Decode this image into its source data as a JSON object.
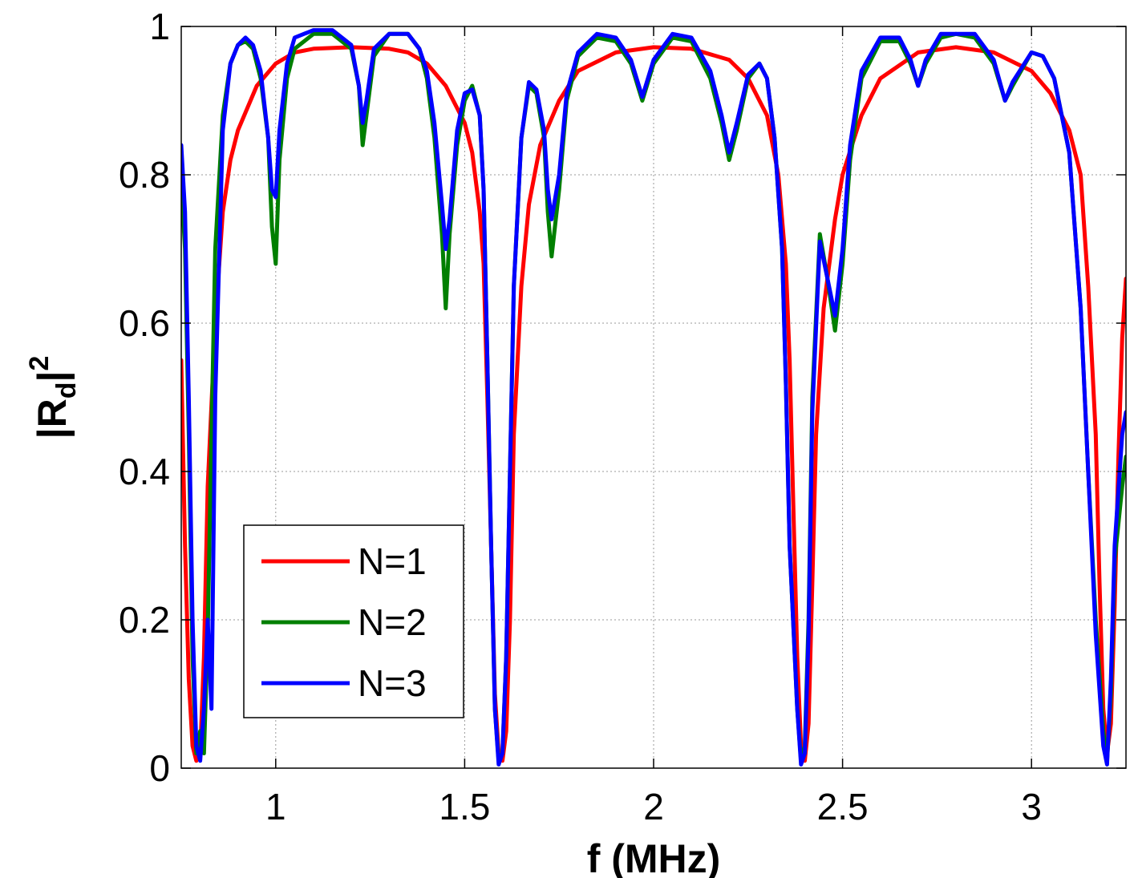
{
  "chart_data": {
    "type": "line",
    "title": "",
    "xlabel": "f (MHz)",
    "ylabel_main": "|R",
    "ylabel_sub": "d",
    "ylabel_tail": "|",
    "ylabel_sup": "2",
    "xlim": [
      0.75,
      3.25
    ],
    "ylim": [
      0,
      1
    ],
    "grid": true,
    "legend_position": "lower-left",
    "x_ticks": [
      {
        "value": 1,
        "label": "1"
      },
      {
        "value": 1.5,
        "label": "1.5"
      },
      {
        "value": 2,
        "label": "2"
      },
      {
        "value": 2.5,
        "label": "2.5"
      },
      {
        "value": 3,
        "label": "3"
      }
    ],
    "y_ticks": [
      {
        "value": 0,
        "label": "0"
      },
      {
        "value": 0.2,
        "label": "0.2"
      },
      {
        "value": 0.4,
        "label": "0.4"
      },
      {
        "value": 0.6,
        "label": "0.6"
      },
      {
        "value": 0.8,
        "label": "0.8"
      },
      {
        "value": 1,
        "label": "1"
      }
    ],
    "series": [
      {
        "name": "N=1",
        "color": "#ff0000",
        "points": [
          [
            0.75,
            0.55
          ],
          [
            0.76,
            0.3
          ],
          [
            0.77,
            0.12
          ],
          [
            0.78,
            0.03
          ],
          [
            0.79,
            0.01
          ],
          [
            0.8,
            0.02
          ],
          [
            0.81,
            0.15
          ],
          [
            0.82,
            0.38
          ],
          [
            0.84,
            0.6
          ],
          [
            0.86,
            0.75
          ],
          [
            0.88,
            0.82
          ],
          [
            0.9,
            0.86
          ],
          [
            0.95,
            0.92
          ],
          [
            1.0,
            0.95
          ],
          [
            1.05,
            0.965
          ],
          [
            1.1,
            0.97
          ],
          [
            1.2,
            0.972
          ],
          [
            1.3,
            0.97
          ],
          [
            1.35,
            0.965
          ],
          [
            1.4,
            0.95
          ],
          [
            1.45,
            0.92
          ],
          [
            1.5,
            0.87
          ],
          [
            1.52,
            0.83
          ],
          [
            1.54,
            0.75
          ],
          [
            1.55,
            0.68
          ],
          [
            1.56,
            0.5
          ],
          [
            1.57,
            0.3
          ],
          [
            1.58,
            0.1
          ],
          [
            1.59,
            0.02
          ],
          [
            1.6,
            0.01
          ],
          [
            1.61,
            0.05
          ],
          [
            1.62,
            0.2
          ],
          [
            1.63,
            0.45
          ],
          [
            1.65,
            0.65
          ],
          [
            1.67,
            0.76
          ],
          [
            1.7,
            0.84
          ],
          [
            1.75,
            0.9
          ],
          [
            1.8,
            0.94
          ],
          [
            1.9,
            0.965
          ],
          [
            2.0,
            0.972
          ],
          [
            2.1,
            0.97
          ],
          [
            2.2,
            0.955
          ],
          [
            2.25,
            0.93
          ],
          [
            2.3,
            0.88
          ],
          [
            2.33,
            0.8
          ],
          [
            2.35,
            0.68
          ],
          [
            2.36,
            0.55
          ],
          [
            2.37,
            0.35
          ],
          [
            2.38,
            0.15
          ],
          [
            2.39,
            0.03
          ],
          [
            2.4,
            0.01
          ],
          [
            2.41,
            0.06
          ],
          [
            2.42,
            0.25
          ],
          [
            2.43,
            0.45
          ],
          [
            2.45,
            0.62
          ],
          [
            2.48,
            0.74
          ],
          [
            2.5,
            0.8
          ],
          [
            2.55,
            0.88
          ],
          [
            2.6,
            0.93
          ],
          [
            2.7,
            0.965
          ],
          [
            2.8,
            0.972
          ],
          [
            2.9,
            0.965
          ],
          [
            3.0,
            0.94
          ],
          [
            3.05,
            0.91
          ],
          [
            3.1,
            0.86
          ],
          [
            3.13,
            0.8
          ],
          [
            3.15,
            0.65
          ],
          [
            3.17,
            0.45
          ],
          [
            3.18,
            0.25
          ],
          [
            3.19,
            0.08
          ],
          [
            3.2,
            0.02
          ],
          [
            3.21,
            0.06
          ],
          [
            3.22,
            0.22
          ],
          [
            3.23,
            0.42
          ],
          [
            3.24,
            0.58
          ],
          [
            3.25,
            0.66
          ]
        ]
      },
      {
        "name": "N=2",
        "color": "#007f00",
        "points": [
          [
            0.75,
            0.79
          ],
          [
            0.76,
            0.7
          ],
          [
            0.77,
            0.45
          ],
          [
            0.78,
            0.15
          ],
          [
            0.79,
            0.02
          ],
          [
            0.8,
            0.05
          ],
          [
            0.81,
            0.02
          ],
          [
            0.82,
            0.18
          ],
          [
            0.83,
            0.45
          ],
          [
            0.84,
            0.7
          ],
          [
            0.86,
            0.88
          ],
          [
            0.88,
            0.95
          ],
          [
            0.9,
            0.975
          ],
          [
            0.92,
            0.98
          ],
          [
            0.94,
            0.97
          ],
          [
            0.96,
            0.93
          ],
          [
            0.98,
            0.85
          ],
          [
            0.99,
            0.73
          ],
          [
            1.0,
            0.68
          ],
          [
            1.01,
            0.82
          ],
          [
            1.03,
            0.93
          ],
          [
            1.05,
            0.97
          ],
          [
            1.1,
            0.99
          ],
          [
            1.15,
            0.99
          ],
          [
            1.2,
            0.97
          ],
          [
            1.22,
            0.92
          ],
          [
            1.23,
            0.84
          ],
          [
            1.24,
            0.88
          ],
          [
            1.26,
            0.96
          ],
          [
            1.3,
            0.99
          ],
          [
            1.35,
            0.99
          ],
          [
            1.38,
            0.97
          ],
          [
            1.4,
            0.93
          ],
          [
            1.42,
            0.85
          ],
          [
            1.44,
            0.72
          ],
          [
            1.45,
            0.62
          ],
          [
            1.46,
            0.72
          ],
          [
            1.48,
            0.84
          ],
          [
            1.5,
            0.9
          ],
          [
            1.52,
            0.92
          ],
          [
            1.54,
            0.88
          ],
          [
            1.55,
            0.78
          ],
          [
            1.56,
            0.55
          ],
          [
            1.57,
            0.3
          ],
          [
            1.58,
            0.08
          ],
          [
            1.59,
            0.01
          ],
          [
            1.6,
            0.02
          ],
          [
            1.61,
            0.15
          ],
          [
            1.62,
            0.4
          ],
          [
            1.63,
            0.65
          ],
          [
            1.65,
            0.85
          ],
          [
            1.67,
            0.92
          ],
          [
            1.69,
            0.91
          ],
          [
            1.71,
            0.85
          ],
          [
            1.72,
            0.75
          ],
          [
            1.73,
            0.69
          ],
          [
            1.75,
            0.78
          ],
          [
            1.77,
            0.9
          ],
          [
            1.8,
            0.96
          ],
          [
            1.85,
            0.985
          ],
          [
            1.9,
            0.98
          ],
          [
            1.94,
            0.95
          ],
          [
            1.97,
            0.9
          ],
          [
            2.0,
            0.95
          ],
          [
            2.05,
            0.985
          ],
          [
            2.1,
            0.98
          ],
          [
            2.15,
            0.93
          ],
          [
            2.18,
            0.87
          ],
          [
            2.2,
            0.82
          ],
          [
            2.22,
            0.86
          ],
          [
            2.25,
            0.93
          ],
          [
            2.28,
            0.95
          ],
          [
            2.3,
            0.93
          ],
          [
            2.32,
            0.85
          ],
          [
            2.34,
            0.7
          ],
          [
            2.35,
            0.52
          ],
          [
            2.36,
            0.3
          ],
          [
            2.38,
            0.08
          ],
          [
            2.39,
            0.01
          ],
          [
            2.4,
            0.03
          ],
          [
            2.41,
            0.2
          ],
          [
            2.42,
            0.5
          ],
          [
            2.44,
            0.72
          ],
          [
            2.46,
            0.66
          ],
          [
            2.48,
            0.59
          ],
          [
            2.5,
            0.68
          ],
          [
            2.52,
            0.82
          ],
          [
            2.55,
            0.93
          ],
          [
            2.6,
            0.98
          ],
          [
            2.65,
            0.98
          ],
          [
            2.68,
            0.95
          ],
          [
            2.7,
            0.92
          ],
          [
            2.72,
            0.95
          ],
          [
            2.76,
            0.985
          ],
          [
            2.8,
            0.99
          ],
          [
            2.85,
            0.985
          ],
          [
            2.9,
            0.95
          ],
          [
            2.93,
            0.9
          ],
          [
            2.95,
            0.92
          ],
          [
            3.0,
            0.965
          ],
          [
            3.03,
            0.96
          ],
          [
            3.06,
            0.93
          ],
          [
            3.1,
            0.83
          ],
          [
            3.13,
            0.62
          ],
          [
            3.15,
            0.4
          ],
          [
            3.17,
            0.2
          ],
          [
            3.19,
            0.05
          ],
          [
            3.2,
            0.01
          ],
          [
            3.21,
            0.1
          ],
          [
            3.22,
            0.28
          ],
          [
            3.24,
            0.38
          ],
          [
            3.25,
            0.42
          ]
        ]
      },
      {
        "name": "N=3",
        "color": "#0000ff",
        "points": [
          [
            0.75,
            0.84
          ],
          [
            0.76,
            0.75
          ],
          [
            0.77,
            0.5
          ],
          [
            0.78,
            0.2
          ],
          [
            0.79,
            0.03
          ],
          [
            0.8,
            0.01
          ],
          [
            0.81,
            0.08
          ],
          [
            0.82,
            0.2
          ],
          [
            0.83,
            0.08
          ],
          [
            0.84,
            0.5
          ],
          [
            0.86,
            0.86
          ],
          [
            0.88,
            0.95
          ],
          [
            0.9,
            0.975
          ],
          [
            0.92,
            0.985
          ],
          [
            0.94,
            0.975
          ],
          [
            0.96,
            0.94
          ],
          [
            0.98,
            0.85
          ],
          [
            0.99,
            0.78
          ],
          [
            1.0,
            0.77
          ],
          [
            1.01,
            0.86
          ],
          [
            1.03,
            0.95
          ],
          [
            1.05,
            0.985
          ],
          [
            1.1,
            0.995
          ],
          [
            1.15,
            0.995
          ],
          [
            1.2,
            0.975
          ],
          [
            1.22,
            0.92
          ],
          [
            1.23,
            0.87
          ],
          [
            1.24,
            0.9
          ],
          [
            1.26,
            0.97
          ],
          [
            1.3,
            0.99
          ],
          [
            1.35,
            0.99
          ],
          [
            1.38,
            0.97
          ],
          [
            1.4,
            0.94
          ],
          [
            1.42,
            0.87
          ],
          [
            1.44,
            0.76
          ],
          [
            1.45,
            0.7
          ],
          [
            1.46,
            0.74
          ],
          [
            1.48,
            0.86
          ],
          [
            1.5,
            0.91
          ],
          [
            1.52,
            0.915
          ],
          [
            1.54,
            0.88
          ],
          [
            1.55,
            0.78
          ],
          [
            1.56,
            0.55
          ],
          [
            1.57,
            0.3
          ],
          [
            1.58,
            0.08
          ],
          [
            1.59,
            0.005
          ],
          [
            1.6,
            0.02
          ],
          [
            1.61,
            0.15
          ],
          [
            1.62,
            0.4
          ],
          [
            1.63,
            0.65
          ],
          [
            1.65,
            0.85
          ],
          [
            1.67,
            0.925
          ],
          [
            1.69,
            0.915
          ],
          [
            1.71,
            0.86
          ],
          [
            1.72,
            0.78
          ],
          [
            1.73,
            0.74
          ],
          [
            1.75,
            0.8
          ],
          [
            1.77,
            0.91
          ],
          [
            1.8,
            0.965
          ],
          [
            1.85,
            0.99
          ],
          [
            1.9,
            0.985
          ],
          [
            1.94,
            0.955
          ],
          [
            1.97,
            0.905
          ],
          [
            2.0,
            0.955
          ],
          [
            2.05,
            0.99
          ],
          [
            2.1,
            0.985
          ],
          [
            2.15,
            0.94
          ],
          [
            2.18,
            0.88
          ],
          [
            2.2,
            0.83
          ],
          [
            2.22,
            0.87
          ],
          [
            2.25,
            0.935
          ],
          [
            2.28,
            0.95
          ],
          [
            2.3,
            0.93
          ],
          [
            2.32,
            0.85
          ],
          [
            2.34,
            0.7
          ],
          [
            2.35,
            0.52
          ],
          [
            2.36,
            0.3
          ],
          [
            2.38,
            0.08
          ],
          [
            2.39,
            0.005
          ],
          [
            2.4,
            0.02
          ],
          [
            2.41,
            0.18
          ],
          [
            2.42,
            0.48
          ],
          [
            2.44,
            0.71
          ],
          [
            2.46,
            0.66
          ],
          [
            2.48,
            0.61
          ],
          [
            2.5,
            0.7
          ],
          [
            2.52,
            0.84
          ],
          [
            2.55,
            0.94
          ],
          [
            2.6,
            0.985
          ],
          [
            2.65,
            0.985
          ],
          [
            2.68,
            0.955
          ],
          [
            2.7,
            0.92
          ],
          [
            2.72,
            0.955
          ],
          [
            2.76,
            0.99
          ],
          [
            2.8,
            0.99
          ],
          [
            2.85,
            0.99
          ],
          [
            2.9,
            0.955
          ],
          [
            2.93,
            0.9
          ],
          [
            2.95,
            0.925
          ],
          [
            3.0,
            0.965
          ],
          [
            3.03,
            0.96
          ],
          [
            3.06,
            0.93
          ],
          [
            3.1,
            0.83
          ],
          [
            3.13,
            0.62
          ],
          [
            3.15,
            0.4
          ],
          [
            3.17,
            0.18
          ],
          [
            3.19,
            0.03
          ],
          [
            3.2,
            0.005
          ],
          [
            3.21,
            0.12
          ],
          [
            3.22,
            0.3
          ],
          [
            3.24,
            0.45
          ],
          [
            3.25,
            0.48
          ]
        ]
      }
    ]
  }
}
